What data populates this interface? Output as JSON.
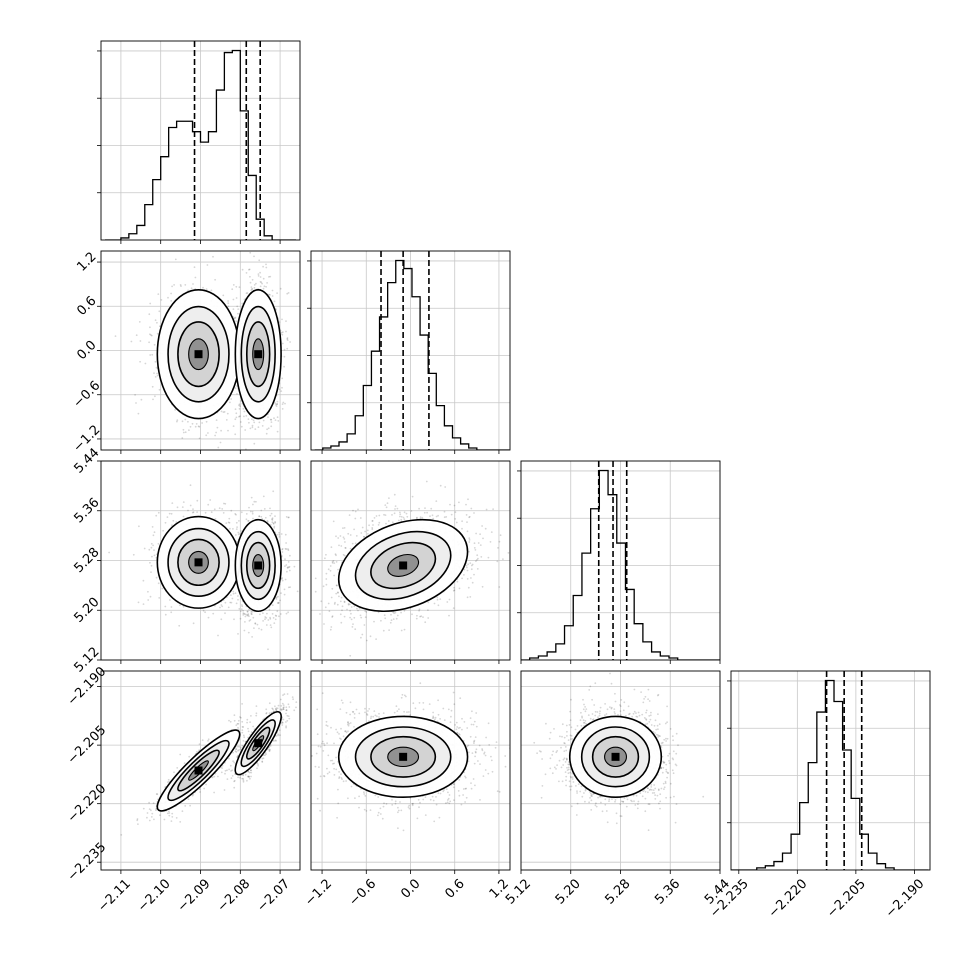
{
  "chart_data": {
    "type": "corner",
    "title": "",
    "layout": "4x4 lower-triangular corner plot",
    "parameters": [
      {
        "range": [
          -2.115,
          -2.065
        ],
        "ticks": [
          -2.11,
          -2.1,
          -2.09,
          -2.08,
          -2.07
        ],
        "tick_labels": [
          "−2.11",
          "−2.10",
          "−2.09",
          "−2.08",
          "−2.07"
        ]
      },
      {
        "range": [
          -1.35,
          1.35
        ],
        "ticks": [
          -1.2,
          -0.6,
          0.0,
          0.6,
          1.2
        ],
        "tick_labels": [
          "−1.2",
          "−0.6",
          "0.0",
          "0.6",
          "1.2"
        ]
      },
      {
        "range": [
          5.12,
          5.44
        ],
        "ticks": [
          5.12,
          5.2,
          5.28,
          5.36,
          5.44
        ],
        "tick_labels": [
          "5.12",
          "5.20",
          "5.28",
          "5.36",
          "5.44"
        ]
      },
      {
        "range": [
          -2.237,
          -2.186
        ],
        "ticks": [
          -2.235,
          -2.22,
          -2.205,
          -2.19
        ],
        "tick_labels": [
          "−2.235",
          "−2.220",
          "−2.205",
          "−2.190"
        ]
      }
    ],
    "marginals": [
      {
        "bin_width": 0.002,
        "bin_start": -2.114,
        "counts": [
          0,
          0,
          1,
          3,
          7,
          17,
          29,
          40,
          54,
          57,
          57,
          52,
          47,
          52,
          72,
          90,
          91,
          62,
          31,
          10,
          2,
          0,
          0,
          0
        ],
        "quantiles": [
          -2.0915,
          -2.0785,
          -2.075
        ]
      },
      {
        "bin_width": 0.11,
        "bin_start": -1.3,
        "counts": [
          0,
          1,
          2,
          4,
          8,
          17,
          32,
          49,
          66,
          83,
          94,
          90,
          76,
          57,
          38,
          22,
          12,
          6,
          3,
          1,
          0,
          0,
          0,
          0
        ],
        "quantiles": [
          -0.4,
          -0.1,
          0.25
        ]
      },
      {
        "bin_width": 0.014,
        "bin_start": 5.12,
        "counts": [
          0,
          1,
          2,
          4,
          8,
          17,
          32,
          53,
          75,
          94,
          82,
          58,
          35,
          18,
          9,
          4,
          2,
          1,
          0,
          0,
          0,
          0,
          0
        ],
        "quantiles": [
          5.245,
          5.268,
          5.29
        ]
      },
      {
        "bin_width": 0.0022,
        "bin_start": -2.237,
        "counts": [
          0,
          0,
          0,
          1,
          2,
          4,
          8,
          17,
          32,
          51,
          75,
          90,
          80,
          57,
          34,
          17,
          8,
          3,
          1,
          0,
          0,
          0,
          0
        ],
        "quantiles": [
          -2.2125,
          -2.208,
          -2.2035
        ]
      }
    ],
    "joint_modes": [
      {
        "x": 0,
        "y": 1,
        "peaks": [
          {
            "cx": -2.0905,
            "cy": -0.05,
            "sx": 0.0045,
            "sy": 0.38,
            "weight": 0.45
          },
          {
            "cx": -2.0755,
            "cy": -0.05,
            "sx": 0.0025,
            "sy": 0.38,
            "weight": 0.55
          }
        ]
      },
      {
        "x": 0,
        "y": 2,
        "peaks": [
          {
            "cx": -2.0905,
            "cy": 5.277,
            "sx": 0.0045,
            "sy": 0.032,
            "weight": 0.45
          },
          {
            "cx": -2.0755,
            "cy": 5.272,
            "sx": 0.0025,
            "sy": 0.032,
            "weight": 0.55
          }
        ]
      },
      {
        "x": 0,
        "y": 3,
        "peaks": [
          {
            "cx": -2.0905,
            "cy": -2.2115,
            "sx": 0.0045,
            "sy": 0.0045,
            "rho": 0.9,
            "weight": 0.45
          },
          {
            "cx": -2.0755,
            "cy": -2.2045,
            "sx": 0.0025,
            "sy": 0.0035,
            "rho": 0.85,
            "weight": 0.55
          }
        ]
      },
      {
        "x": 1,
        "y": 2,
        "peaks": [
          {
            "cx": -0.1,
            "cy": 5.272,
            "sx": 0.38,
            "sy": 0.032,
            "rho": 0.3,
            "weight": 1
          }
        ]
      },
      {
        "x": 1,
        "y": 3,
        "peaks": [
          {
            "cx": -0.1,
            "cy": -2.208,
            "sx": 0.38,
            "sy": 0.0045,
            "weight": 1
          }
        ]
      },
      {
        "x": 2,
        "y": 3,
        "peaks": [
          {
            "cx": 5.272,
            "cy": -2.208,
            "sx": 0.032,
            "sy": 0.0045,
            "weight": 1
          }
        ]
      }
    ],
    "colors": {
      "scatter": "#000000",
      "contour": "#000000",
      "quantile_line": "#000000",
      "grid": "#c8c8c8"
    },
    "grid": true
  }
}
